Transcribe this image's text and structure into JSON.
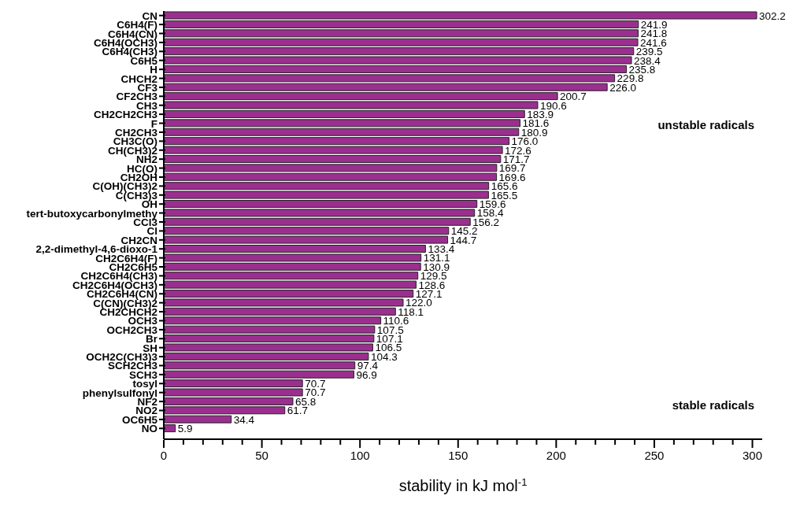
{
  "chart_data": {
    "type": "bar",
    "orientation": "horizontal",
    "xlabel": "stability in kJ mol$^{-1}$",
    "annotations": [
      "unstable radicals",
      "stable radicals"
    ],
    "categories": [
      "CN",
      "C6H4(F)",
      "C6H4(CN)",
      "C6H4(OCH3)",
      "C6H4(CH3)",
      "C6H5",
      "H",
      "CHCH2",
      "CF3",
      "CF2CH3",
      "CH3",
      "CH2CH2CH3",
      "F",
      "CH2CH3",
      "CH3C(O)",
      "CH(CH3)2",
      "NH2",
      "HC(O)",
      "CH2OH",
      "C(OH)(CH3)2",
      "C(CH3)3",
      "OH",
      "tert-butoxycarbonylmethy",
      "CCl3",
      "Cl",
      "CH2CN",
      "2,2-dimethyl-4,6-dioxo-1",
      "CH2C6H4(F)",
      "CH2C6H5",
      "CH2C6H4(CH3)",
      "CH2C6H4(OCH3)",
      "CH2C6H4(CN)",
      "C(CN)(CH3)2",
      "CH2CHCH2",
      "OCH3",
      "OCH2CH3",
      "Br",
      "SH",
      "OCH2C(CH3)3",
      "SCH2CH3",
      "SCH3",
      "tosyl",
      "phenylsulfonyl",
      "NF2",
      "NO2",
      "OC6H5",
      "NO"
    ],
    "values": [
      302.2,
      241.9,
      241.8,
      241.6,
      239.5,
      238.4,
      235.8,
      229.8,
      226.0,
      200.7,
      190.6,
      183.9,
      181.6,
      180.9,
      176.0,
      172.6,
      171.7,
      169.7,
      169.6,
      165.6,
      165.5,
      159.6,
      158.4,
      156.2,
      145.2,
      144.7,
      133.4,
      131.1,
      130.9,
      129.5,
      128.6,
      127.1,
      122.0,
      118.1,
      110.6,
      107.5,
      107.1,
      106.5,
      104.3,
      97.4,
      96.9,
      70.7,
      70.7,
      65.8,
      61.7,
      34.4,
      5.9
    ],
    "value_labels": [
      "302.2",
      "241.9",
      "241.8",
      "241.6",
      "239.5",
      "238.4",
      "235.8",
      "229.8",
      "226.0",
      "200.7",
      "190.6",
      "183.9",
      "181.6",
      "180.9",
      "176.0",
      "172.6",
      "171.7",
      "169.7",
      "169.6",
      "165.6",
      "165.5",
      "159.6",
      "158.4",
      "156.2",
      "145.2",
      "144.7",
      "133.4",
      "131.1",
      "130.9",
      "129.5",
      "128.6",
      "127.1",
      "122.0",
      "118.1",
      "110.6",
      "107.5",
      "107.1",
      "106.5",
      "104.3",
      "97.4",
      "96.9",
      "70.7",
      "70.7",
      "65.8",
      "61.7",
      "34.4",
      "5.9"
    ],
    "color": "#9b2f8f",
    "xlim": [
      0,
      305
    ],
    "xticks": [
      0,
      {
        "value": 10,
        "label": null
      },
      {
        "value": 20,
        "label": null
      },
      {
        "value": 30,
        "label": null
      },
      {
        "value": 40,
        "label": null
      },
      50,
      {
        "value": 60,
        "label": null
      },
      {
        "value": 70,
        "label": null
      },
      {
        "value": 80,
        "label": null
      },
      {
        "value": 90,
        "label": null
      },
      100,
      {
        "value": 110,
        "label": null
      },
      {
        "value": 120,
        "label": null
      },
      {
        "value": 130,
        "label": null
      },
      {
        "value": 140,
        "label": null
      },
      150,
      {
        "value": 160,
        "label": null
      },
      {
        "value": 170,
        "label": null
      },
      {
        "value": 180,
        "label": null
      },
      {
        "value": 190,
        "label": null
      },
      200,
      {
        "value": 210,
        "label": null
      },
      {
        "value": 220,
        "label": null
      },
      {
        "value": 230,
        "label": null
      },
      {
        "value": 240,
        "label": null
      },
      250,
      {
        "value": 260,
        "label": null
      },
      {
        "value": 270,
        "label": null
      },
      {
        "value": 280,
        "label": null
      },
      {
        "value": 290,
        "label": null
      },
      300
    ],
    "grid": false,
    "legend": false
  }
}
